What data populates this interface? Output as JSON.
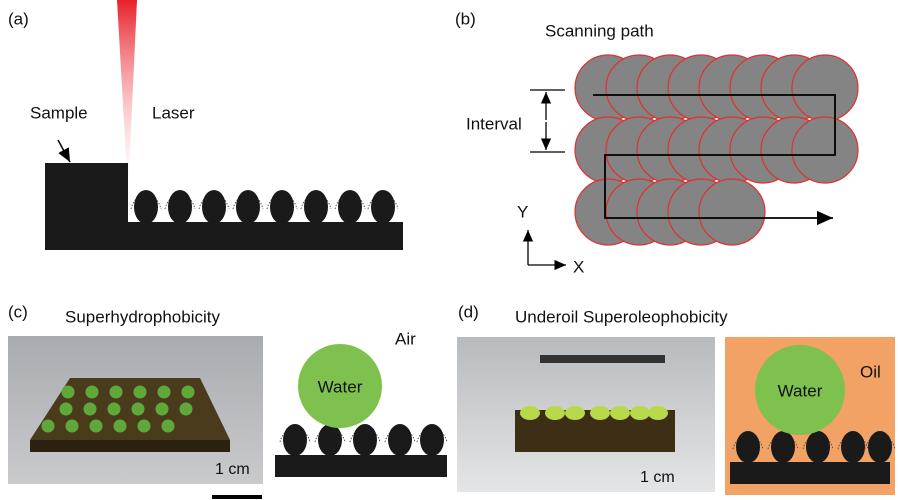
{
  "panel_a": {
    "label": "(a)",
    "sample_label": "Sample",
    "laser_label": "Laser"
  },
  "panel_b": {
    "label": "(b)",
    "title": "Scanning path",
    "interval_label": "Interval",
    "y_axis": "Y",
    "x_axis": "X"
  },
  "panel_c": {
    "label": "(c)",
    "title": "Superhydrophobicity",
    "scale_label": "1 cm",
    "air_label": "Air",
    "water_label": "Water"
  },
  "panel_d": {
    "label": "(d)",
    "title": "Underoil Superoleophobicity",
    "scale_label": "1 cm",
    "water_label": "Water",
    "oil_label": "Oil"
  }
}
